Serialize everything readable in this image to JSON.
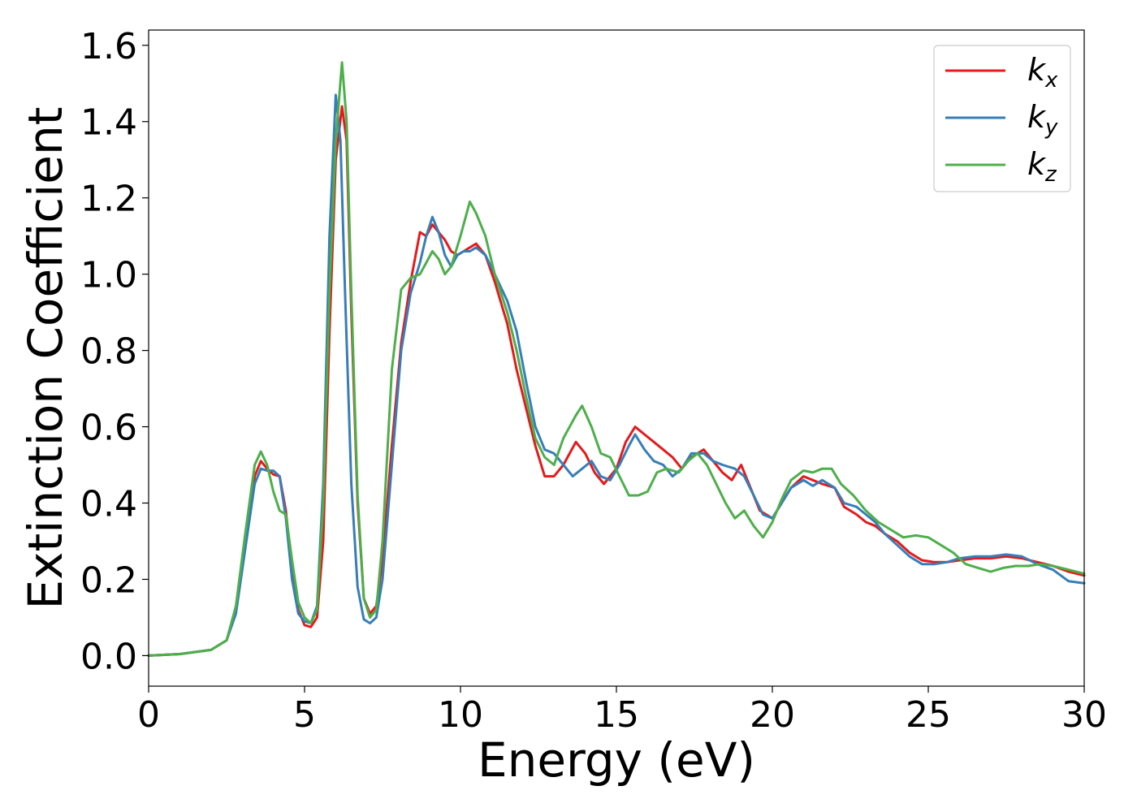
{
  "chart_data": {
    "type": "line",
    "title": "",
    "xlabel": "Energy (eV)",
    "ylabel": "Extinction Coefficient",
    "xlim": [
      0,
      30
    ],
    "ylim": [
      -0.08,
      1.64
    ],
    "xticks": [
      0,
      5,
      10,
      15,
      20,
      25,
      30
    ],
    "xtick_labels": [
      "0",
      "5",
      "10",
      "15",
      "20",
      "25",
      "30"
    ],
    "yticks": [
      0.0,
      0.2,
      0.4,
      0.6,
      0.8,
      1.0,
      1.2,
      1.4,
      1.6
    ],
    "ytick_labels": [
      "0.0",
      "0.2",
      "0.4",
      "0.6",
      "0.8",
      "1.0",
      "1.2",
      "1.4",
      "1.6"
    ],
    "grid": false,
    "legend_position": "top-right",
    "series": [
      {
        "name": "k_x",
        "legend_main": "k",
        "legend_sub": "x",
        "color": "#e41a1c",
        "points": [
          [
            0,
            0.0
          ],
          [
            1,
            0.004
          ],
          [
            2,
            0.015
          ],
          [
            2.5,
            0.04
          ],
          [
            2.8,
            0.12
          ],
          [
            3.1,
            0.3
          ],
          [
            3.4,
            0.47
          ],
          [
            3.6,
            0.51
          ],
          [
            3.8,
            0.49
          ],
          [
            4.0,
            0.475
          ],
          [
            4.2,
            0.47
          ],
          [
            4.4,
            0.38
          ],
          [
            4.6,
            0.22
          ],
          [
            4.8,
            0.12
          ],
          [
            5.0,
            0.08
          ],
          [
            5.2,
            0.075
          ],
          [
            5.4,
            0.1
          ],
          [
            5.6,
            0.3
          ],
          [
            5.8,
            0.85
          ],
          [
            6.0,
            1.3
          ],
          [
            6.2,
            1.44
          ],
          [
            6.35,
            1.35
          ],
          [
            6.5,
            0.9
          ],
          [
            6.7,
            0.4
          ],
          [
            6.9,
            0.15
          ],
          [
            7.1,
            0.11
          ],
          [
            7.3,
            0.13
          ],
          [
            7.5,
            0.25
          ],
          [
            7.8,
            0.55
          ],
          [
            8.1,
            0.82
          ],
          [
            8.4,
            0.98
          ],
          [
            8.7,
            1.11
          ],
          [
            8.9,
            1.1
          ],
          [
            9.1,
            1.13
          ],
          [
            9.3,
            1.11
          ],
          [
            9.5,
            1.09
          ],
          [
            9.7,
            1.06
          ],
          [
            9.9,
            1.05
          ],
          [
            10.1,
            1.06
          ],
          [
            10.3,
            1.07
          ],
          [
            10.5,
            1.08
          ],
          [
            10.8,
            1.05
          ],
          [
            11.1,
            0.98
          ],
          [
            11.5,
            0.87
          ],
          [
            11.8,
            0.75
          ],
          [
            12.1,
            0.65
          ],
          [
            12.4,
            0.55
          ],
          [
            12.7,
            0.47
          ],
          [
            13.0,
            0.47
          ],
          [
            13.3,
            0.5
          ],
          [
            13.7,
            0.56
          ],
          [
            14.0,
            0.53
          ],
          [
            14.3,
            0.48
          ],
          [
            14.6,
            0.45
          ],
          [
            15.0,
            0.49
          ],
          [
            15.3,
            0.56
          ],
          [
            15.6,
            0.6
          ],
          [
            15.9,
            0.58
          ],
          [
            16.2,
            0.56
          ],
          [
            16.5,
            0.54
          ],
          [
            16.8,
            0.52
          ],
          [
            17.1,
            0.49
          ],
          [
            17.4,
            0.52
          ],
          [
            17.8,
            0.54
          ],
          [
            18.1,
            0.51
          ],
          [
            18.4,
            0.48
          ],
          [
            18.7,
            0.46
          ],
          [
            19.0,
            0.5
          ],
          [
            19.3,
            0.44
          ],
          [
            19.6,
            0.38
          ],
          [
            20.0,
            0.36
          ],
          [
            20.3,
            0.4
          ],
          [
            20.6,
            0.44
          ],
          [
            21.0,
            0.47
          ],
          [
            21.3,
            0.46
          ],
          [
            21.6,
            0.45
          ],
          [
            22.0,
            0.44
          ],
          [
            22.3,
            0.39
          ],
          [
            22.7,
            0.37
          ],
          [
            23.0,
            0.35
          ],
          [
            23.3,
            0.34
          ],
          [
            23.6,
            0.32
          ],
          [
            24.0,
            0.3
          ],
          [
            24.4,
            0.27
          ],
          [
            24.8,
            0.25
          ],
          [
            25.2,
            0.245
          ],
          [
            25.6,
            0.245
          ],
          [
            26.0,
            0.25
          ],
          [
            26.5,
            0.255
          ],
          [
            27.0,
            0.255
          ],
          [
            27.5,
            0.26
          ],
          [
            28.0,
            0.255
          ],
          [
            28.5,
            0.245
          ],
          [
            29.0,
            0.235
          ],
          [
            29.5,
            0.22
          ],
          [
            30.0,
            0.21
          ]
        ]
      },
      {
        "name": "k_y",
        "legend_main": "k",
        "legend_sub": "y",
        "color": "#377eb8",
        "points": [
          [
            0,
            0.0
          ],
          [
            1,
            0.004
          ],
          [
            2,
            0.015
          ],
          [
            2.5,
            0.04
          ],
          [
            2.8,
            0.11
          ],
          [
            3.1,
            0.28
          ],
          [
            3.4,
            0.45
          ],
          [
            3.6,
            0.49
          ],
          [
            3.8,
            0.485
          ],
          [
            4.0,
            0.485
          ],
          [
            4.2,
            0.47
          ],
          [
            4.4,
            0.36
          ],
          [
            4.6,
            0.2
          ],
          [
            4.8,
            0.11
          ],
          [
            5.0,
            0.09
          ],
          [
            5.2,
            0.085
          ],
          [
            5.4,
            0.13
          ],
          [
            5.6,
            0.45
          ],
          [
            5.8,
            1.1
          ],
          [
            6.0,
            1.47
          ],
          [
            6.15,
            1.35
          ],
          [
            6.3,
            0.95
          ],
          [
            6.5,
            0.45
          ],
          [
            6.7,
            0.18
          ],
          [
            6.9,
            0.095
          ],
          [
            7.1,
            0.085
          ],
          [
            7.3,
            0.1
          ],
          [
            7.5,
            0.2
          ],
          [
            7.8,
            0.5
          ],
          [
            8.1,
            0.8
          ],
          [
            8.4,
            0.95
          ],
          [
            8.7,
            1.03
          ],
          [
            8.9,
            1.1
          ],
          [
            9.1,
            1.15
          ],
          [
            9.3,
            1.11
          ],
          [
            9.5,
            1.05
          ],
          [
            9.7,
            1.02
          ],
          [
            9.9,
            1.05
          ],
          [
            10.1,
            1.06
          ],
          [
            10.3,
            1.06
          ],
          [
            10.5,
            1.07
          ],
          [
            10.8,
            1.05
          ],
          [
            11.1,
            1.0
          ],
          [
            11.5,
            0.93
          ],
          [
            11.8,
            0.85
          ],
          [
            12.1,
            0.72
          ],
          [
            12.4,
            0.6
          ],
          [
            12.7,
            0.54
          ],
          [
            13.0,
            0.53
          ],
          [
            13.3,
            0.5
          ],
          [
            13.6,
            0.47
          ],
          [
            13.9,
            0.49
          ],
          [
            14.2,
            0.51
          ],
          [
            14.5,
            0.47
          ],
          [
            14.8,
            0.46
          ],
          [
            15.1,
            0.5
          ],
          [
            15.4,
            0.55
          ],
          [
            15.6,
            0.58
          ],
          [
            15.9,
            0.54
          ],
          [
            16.2,
            0.51
          ],
          [
            16.5,
            0.5
          ],
          [
            16.8,
            0.47
          ],
          [
            17.1,
            0.49
          ],
          [
            17.4,
            0.53
          ],
          [
            17.8,
            0.53
          ],
          [
            18.1,
            0.51
          ],
          [
            18.4,
            0.5
          ],
          [
            18.8,
            0.49
          ],
          [
            19.1,
            0.47
          ],
          [
            19.4,
            0.42
          ],
          [
            19.7,
            0.37
          ],
          [
            20.0,
            0.36
          ],
          [
            20.3,
            0.4
          ],
          [
            20.6,
            0.44
          ],
          [
            21.0,
            0.46
          ],
          [
            21.3,
            0.445
          ],
          [
            21.6,
            0.46
          ],
          [
            22.0,
            0.44
          ],
          [
            22.3,
            0.4
          ],
          [
            22.7,
            0.39
          ],
          [
            23.0,
            0.37
          ],
          [
            23.3,
            0.35
          ],
          [
            23.6,
            0.32
          ],
          [
            24.0,
            0.29
          ],
          [
            24.4,
            0.26
          ],
          [
            24.8,
            0.24
          ],
          [
            25.2,
            0.24
          ],
          [
            25.6,
            0.245
          ],
          [
            26.0,
            0.255
          ],
          [
            26.5,
            0.26
          ],
          [
            27.0,
            0.26
          ],
          [
            27.5,
            0.265
          ],
          [
            28.0,
            0.26
          ],
          [
            28.5,
            0.24
          ],
          [
            29.0,
            0.225
          ],
          [
            29.5,
            0.195
          ],
          [
            30.0,
            0.19
          ]
        ]
      },
      {
        "name": "k_z",
        "legend_main": "k",
        "legend_sub": "z",
        "color": "#4daf4a",
        "points": [
          [
            0,
            0.0
          ],
          [
            1,
            0.004
          ],
          [
            2,
            0.015
          ],
          [
            2.5,
            0.04
          ],
          [
            2.8,
            0.13
          ],
          [
            3.1,
            0.32
          ],
          [
            3.4,
            0.5
          ],
          [
            3.6,
            0.535
          ],
          [
            3.8,
            0.5
          ],
          [
            4.0,
            0.43
          ],
          [
            4.2,
            0.38
          ],
          [
            4.4,
            0.37
          ],
          [
            4.6,
            0.25
          ],
          [
            4.8,
            0.14
          ],
          [
            5.0,
            0.1
          ],
          [
            5.2,
            0.085
          ],
          [
            5.4,
            0.12
          ],
          [
            5.6,
            0.4
          ],
          [
            5.8,
            0.95
          ],
          [
            6.0,
            1.35
          ],
          [
            6.2,
            1.555
          ],
          [
            6.35,
            1.4
          ],
          [
            6.5,
            0.95
          ],
          [
            6.7,
            0.42
          ],
          [
            6.9,
            0.15
          ],
          [
            7.1,
            0.1
          ],
          [
            7.3,
            0.12
          ],
          [
            7.5,
            0.3
          ],
          [
            7.8,
            0.75
          ],
          [
            8.1,
            0.96
          ],
          [
            8.4,
            0.99
          ],
          [
            8.7,
            1.0
          ],
          [
            8.9,
            1.03
          ],
          [
            9.1,
            1.06
          ],
          [
            9.3,
            1.04
          ],
          [
            9.5,
            1.0
          ],
          [
            9.7,
            1.02
          ],
          [
            10.0,
            1.1
          ],
          [
            10.3,
            1.19
          ],
          [
            10.5,
            1.16
          ],
          [
            10.8,
            1.1
          ],
          [
            11.1,
            1.0
          ],
          [
            11.5,
            0.9
          ],
          [
            11.8,
            0.8
          ],
          [
            12.1,
            0.68
          ],
          [
            12.4,
            0.57
          ],
          [
            12.7,
            0.52
          ],
          [
            13.0,
            0.5
          ],
          [
            13.3,
            0.57
          ],
          [
            13.7,
            0.63
          ],
          [
            13.9,
            0.655
          ],
          [
            14.2,
            0.6
          ],
          [
            14.5,
            0.53
          ],
          [
            14.8,
            0.52
          ],
          [
            15.1,
            0.47
          ],
          [
            15.4,
            0.42
          ],
          [
            15.7,
            0.42
          ],
          [
            16.0,
            0.43
          ],
          [
            16.3,
            0.48
          ],
          [
            16.6,
            0.49
          ],
          [
            17.0,
            0.48
          ],
          [
            17.3,
            0.51
          ],
          [
            17.6,
            0.53
          ],
          [
            17.9,
            0.5
          ],
          [
            18.2,
            0.45
          ],
          [
            18.5,
            0.4
          ],
          [
            18.8,
            0.36
          ],
          [
            19.1,
            0.38
          ],
          [
            19.4,
            0.34
          ],
          [
            19.7,
            0.31
          ],
          [
            20.0,
            0.35
          ],
          [
            20.3,
            0.41
          ],
          [
            20.6,
            0.46
          ],
          [
            21.0,
            0.485
          ],
          [
            21.3,
            0.48
          ],
          [
            21.6,
            0.49
          ],
          [
            21.9,
            0.49
          ],
          [
            22.2,
            0.45
          ],
          [
            22.6,
            0.42
          ],
          [
            23.0,
            0.38
          ],
          [
            23.4,
            0.35
          ],
          [
            23.8,
            0.33
          ],
          [
            24.2,
            0.31
          ],
          [
            24.6,
            0.315
          ],
          [
            25.0,
            0.31
          ],
          [
            25.4,
            0.29
          ],
          [
            25.8,
            0.27
          ],
          [
            26.2,
            0.24
          ],
          [
            26.6,
            0.23
          ],
          [
            27.0,
            0.22
          ],
          [
            27.4,
            0.23
          ],
          [
            27.8,
            0.235
          ],
          [
            28.2,
            0.235
          ],
          [
            28.6,
            0.24
          ],
          [
            29.0,
            0.235
          ],
          [
            29.5,
            0.225
          ],
          [
            30.0,
            0.215
          ]
        ]
      }
    ]
  }
}
